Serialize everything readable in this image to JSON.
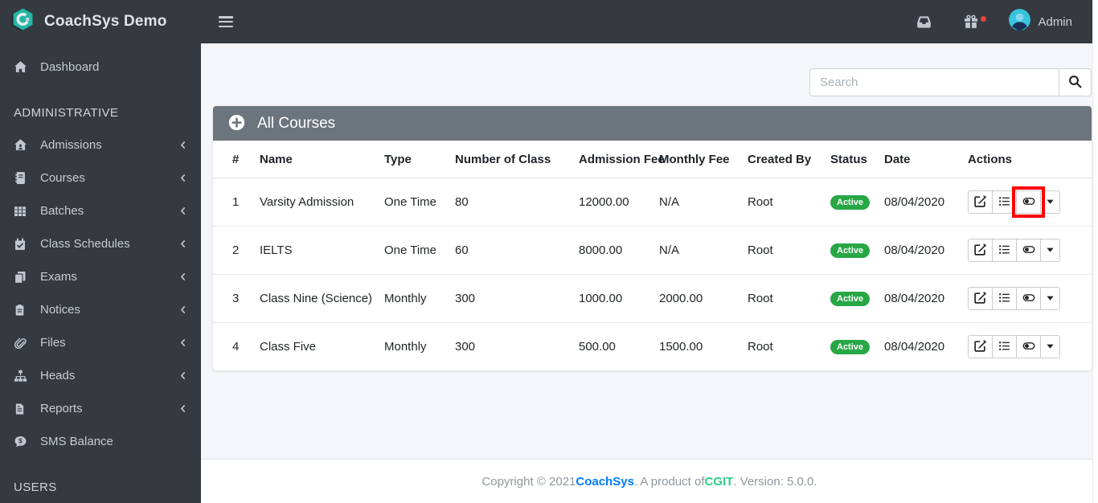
{
  "brand": {
    "title": "CoachSys Demo"
  },
  "topbar": {
    "user_label": "Admin",
    "icons": [
      "inbox-icon",
      "gift-icon",
      "avatar"
    ],
    "notification_dot_color": "#e8453c"
  },
  "sidebar": {
    "items": [
      {
        "type": "link",
        "label": "Dashboard",
        "icon": "home",
        "chevron": false
      },
      {
        "type": "header",
        "label": "ADMINISTRATIVE"
      },
      {
        "type": "link",
        "label": "Admissions",
        "icon": "house-user",
        "chevron": true
      },
      {
        "type": "link",
        "label": "Courses",
        "icon": "book",
        "chevron": true
      },
      {
        "type": "link",
        "label": "Batches",
        "icon": "grid",
        "chevron": true
      },
      {
        "type": "link",
        "label": "Class Schedules",
        "icon": "calendar-check",
        "chevron": true
      },
      {
        "type": "link",
        "label": "Exams",
        "icon": "copy",
        "chevron": true
      },
      {
        "type": "link",
        "label": "Notices",
        "icon": "clipboard",
        "chevron": true
      },
      {
        "type": "link",
        "label": "Files",
        "icon": "paperclip",
        "chevron": true
      },
      {
        "type": "link",
        "label": "Heads",
        "icon": "sitemap",
        "chevron": true
      },
      {
        "type": "link",
        "label": "Reports",
        "icon": "file-report",
        "chevron": true
      },
      {
        "type": "link",
        "label": "SMS Balance",
        "icon": "comment-dollar",
        "chevron": false
      },
      {
        "type": "header",
        "label": "USERS"
      }
    ]
  },
  "search": {
    "placeholder": "Search"
  },
  "card": {
    "title": "All Courses"
  },
  "table": {
    "columns": [
      "#",
      "Name",
      "Type",
      "Number of Class",
      "Admission Fee",
      "Monthly Fee",
      "Created By",
      "Status",
      "Date",
      "Actions"
    ],
    "rows": [
      {
        "num": "1",
        "name": "Varsity Admission",
        "type": "One Time",
        "number_of_class": "80",
        "admission_fee": "12000.00",
        "monthly_fee": "N/A",
        "created_by": "Root",
        "status": "Active",
        "date": "08/04/2020"
      },
      {
        "num": "2",
        "name": "IELTS",
        "type": "One Time",
        "number_of_class": "60",
        "admission_fee": "8000.00",
        "monthly_fee": "N/A",
        "created_by": "Root",
        "status": "Active",
        "date": "08/04/2020"
      },
      {
        "num": "3",
        "name": "Class Nine (Science)",
        "type": "Monthly",
        "number_of_class": "300",
        "admission_fee": "1000.00",
        "monthly_fee": "2000.00",
        "created_by": "Root",
        "status": "Active",
        "date": "08/04/2020"
      },
      {
        "num": "4",
        "name": "Class Five",
        "type": "Monthly",
        "number_of_class": "300",
        "admission_fee": "500.00",
        "monthly_fee": "1500.00",
        "created_by": "Root",
        "status": "Active",
        "date": "08/04/2020"
      }
    ],
    "actions": [
      {
        "name": "edit",
        "icon": "edit"
      },
      {
        "name": "details",
        "icon": "list"
      },
      {
        "name": "toggle-status",
        "icon": "toggle"
      },
      {
        "name": "dropdown",
        "icon": "caret-down"
      }
    ],
    "status_badge_color": "#28a745"
  },
  "annotation": {
    "row_index": 0,
    "action": "toggle-status",
    "color": "#ff0000"
  },
  "footer": {
    "prefix": "Copyright © 2021 ",
    "brand_link": "CoachSys",
    "middle": ". A product of ",
    "company_link": "CGIT",
    "suffix": ". Version: 5.0.0."
  },
  "colors": {
    "navbar": "#343a40",
    "sidebar": "#343a40",
    "card_header": "#6c757d",
    "badge_green": "#28a745",
    "footer_link_blue": "#007bff",
    "footer_link_green": "#2dce89",
    "content_bg": "#f4f6f9",
    "annotation_red": "#ff0000"
  }
}
